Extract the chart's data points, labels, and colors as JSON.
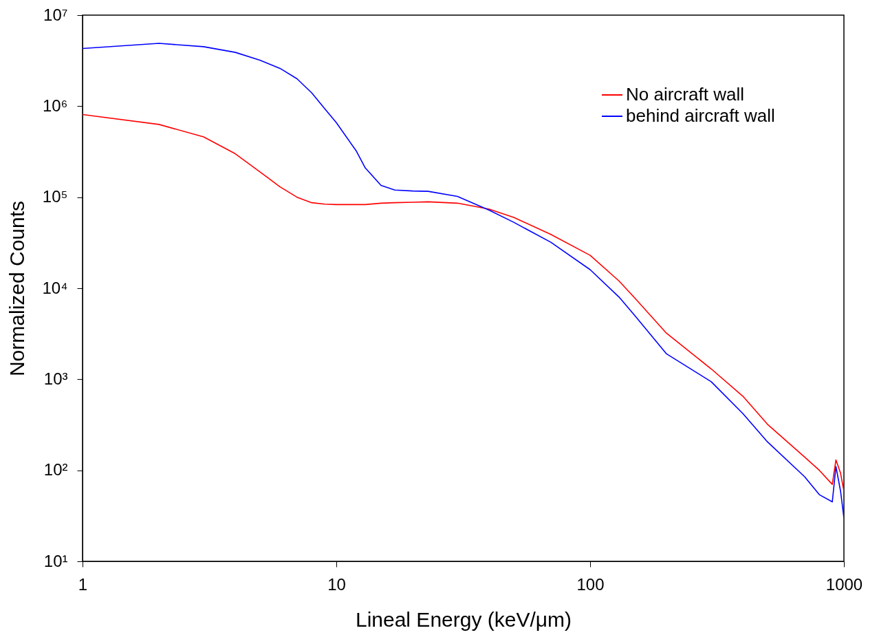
{
  "chart_data": {
    "type": "line",
    "xlabel": "Lineal Energy (keV/μm)",
    "ylabel": "Normalized Counts",
    "log": "xy",
    "grid": false,
    "legend": "top right",
    "line_style": "solid",
    "marker": "none",
    "xlim": [
      1,
      1000
    ],
    "xticks": [
      1,
      10,
      100,
      1000
    ],
    "ylim": [
      10,
      10000000
    ],
    "yticks": [
      {
        "value": 10,
        "label": "10¹"
      },
      {
        "value": 100,
        "label": "10²"
      },
      {
        "value": 1000,
        "label": "10³"
      },
      {
        "value": 10000,
        "label": "10⁴"
      },
      {
        "value": 100000,
        "label": "10⁵"
      },
      {
        "value": 1000000,
        "label": "10⁶"
      },
      {
        "value": 10000000,
        "label": "10⁷"
      }
    ],
    "x": [
      1,
      2,
      3,
      4,
      5,
      6,
      7,
      8,
      9,
      10,
      12,
      13,
      15,
      17,
      20,
      23,
      30,
      40,
      50,
      70,
      100,
      130,
      150,
      200,
      300,
      400,
      500,
      700,
      800,
      900,
      930,
      970,
      1000
    ],
    "series": [
      {
        "name": "No aircraft wall",
        "color": "#ff0000",
        "values": [
          810000,
          630000,
          460000,
          300000,
          190000,
          130000,
          100000,
          87000,
          84000,
          83000,
          83000,
          83000,
          86000,
          87000,
          88000,
          89000,
          86000,
          74000,
          60000,
          39000,
          23000,
          12000,
          7800,
          3200,
          1300,
          650,
          320,
          140,
          100,
          70,
          130,
          93,
          59
        ]
      },
      {
        "name": "behind aircraft wall",
        "color": "#0000ff",
        "values": [
          4300000,
          4900000,
          4500000,
          3900000,
          3200000,
          2600000,
          2000000,
          1400000,
          940000,
          660000,
          320000,
          210000,
          135000,
          120000,
          117000,
          116000,
          102000,
          72000,
          53000,
          32000,
          16000,
          8000,
          5000,
          1900,
          940,
          420,
          205,
          85,
          54,
          45,
          110,
          59,
          30
        ]
      }
    ]
  }
}
